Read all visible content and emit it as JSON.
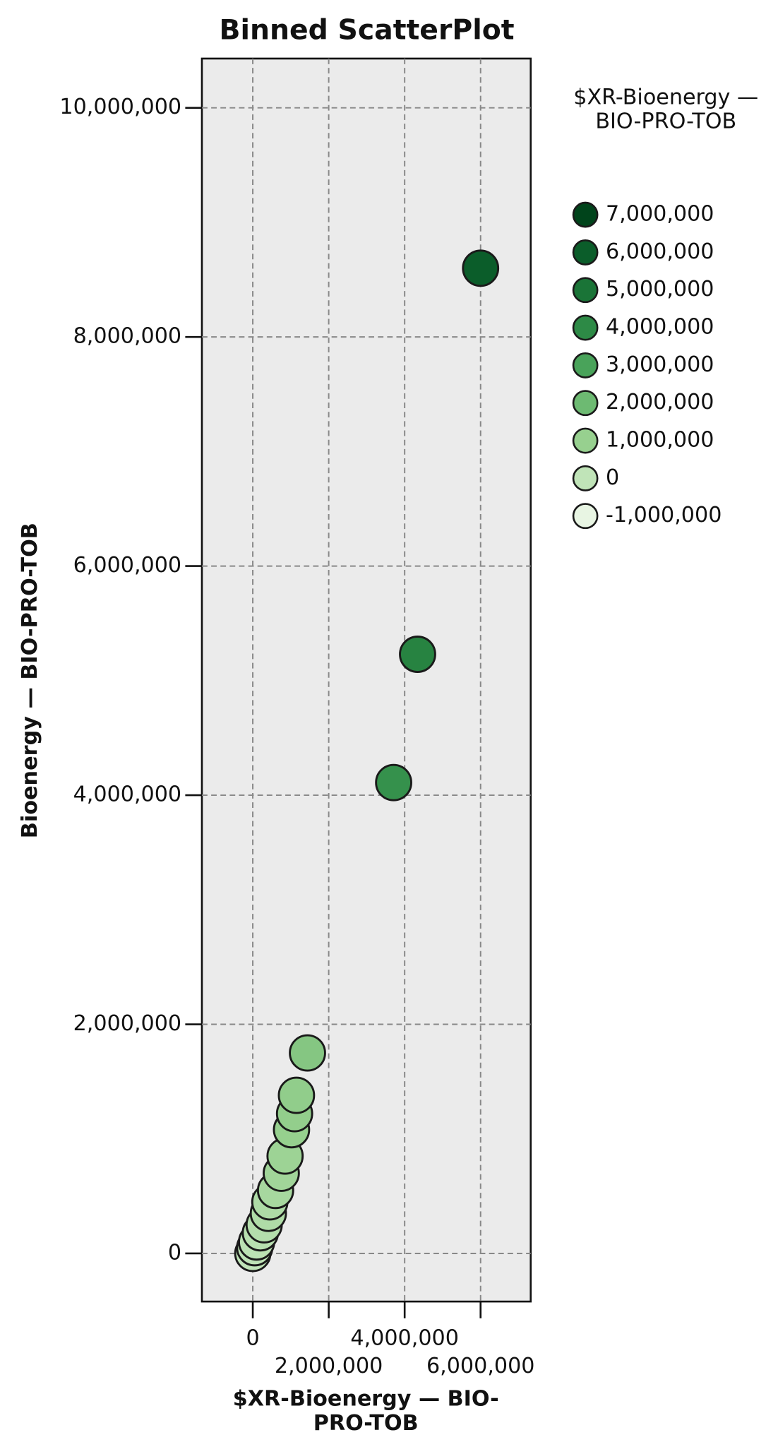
{
  "chart_data": {
    "type": "scatter",
    "title": "Binned ScatterPlot",
    "x_label": "$XR-Bioenergy — BIO-PRO-TOB",
    "y_label": "Bioenergy — BIO-PRO-TOB",
    "legend_title": "$XR-Bioenergy — BIO-PRO-TOB",
    "xlim": [
      -1340000,
      7320000
    ],
    "ylim": [
      -420000,
      10430000
    ],
    "xticks": [
      {
        "value": 0,
        "label": "0"
      },
      {
        "value": 2000000,
        "label": "2,000,000"
      },
      {
        "value": 4000000,
        "label": "4,000,000"
      },
      {
        "value": 6000000,
        "label": "6,000,000"
      }
    ],
    "yticks": [
      {
        "value": 0,
        "label": "0"
      },
      {
        "value": 2000000,
        "label": "2,000,000"
      },
      {
        "value": 4000000,
        "label": "4,000,000"
      },
      {
        "value": 6000000,
        "label": "6,000,000"
      },
      {
        "value": 8000000,
        "label": "8,000,000"
      },
      {
        "value": 10000000,
        "label": "10,000,000"
      }
    ],
    "grid": true,
    "legend": [
      {
        "value": 7000000,
        "label": "7,000,000",
        "color": "#00441b"
      },
      {
        "value": 6000000,
        "label": "6,000,000",
        "color": "#0b5d2a"
      },
      {
        "value": 5000000,
        "label": "5,000,000",
        "color": "#1a7437"
      },
      {
        "value": 4000000,
        "label": "4,000,000",
        "color": "#2d8a46"
      },
      {
        "value": 3000000,
        "label": "3,000,000",
        "color": "#49a35a"
      },
      {
        "value": 2000000,
        "label": "2,000,000",
        "color": "#6dba72"
      },
      {
        "value": 1000000,
        "label": "1,000,000",
        "color": "#97d08f"
      },
      {
        "value": 0,
        "label": "0",
        "color": "#c0e4b8"
      },
      {
        "value": -1000000,
        "label": "-1,000,000",
        "color": "#e8f5e3"
      }
    ],
    "x": [
      6000000,
      4340000,
      3710000,
      1440000,
      1150000,
      1100000,
      1020000,
      850000,
      750000,
      600000,
      450000,
      410000,
      300000,
      200000,
      100000,
      50000,
      0
    ],
    "series": [
      {
        "name": "Bioenergy — BIO-PRO-TOB",
        "values": [
          8600000,
          5230000,
          4110000,
          1750000,
          1380000,
          1220000,
          1080000,
          850000,
          700000,
          550000,
          450000,
          350000,
          250000,
          180000,
          100000,
          50000,
          0
        ]
      }
    ]
  }
}
